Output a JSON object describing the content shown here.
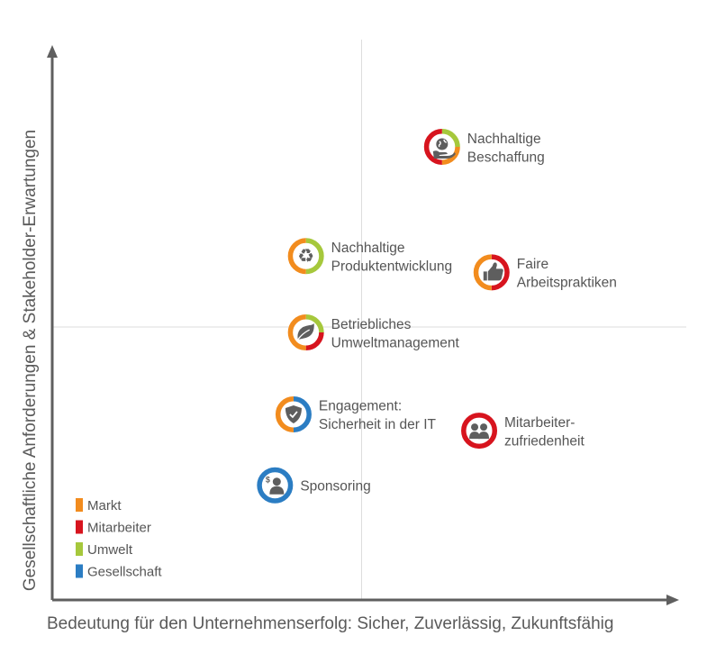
{
  "chart_data": {
    "type": "scatter",
    "title": "",
    "xlabel": "Bedeutung für den Unternehmenserfolg: Sicher, Zuverlässig, Zukunftsfähig",
    "ylabel": "Gesellschaftliche Anforderungen & Stakeholder-Erwartungen",
    "xlim": [
      0,
      100
    ],
    "ylim": [
      0,
      100
    ],
    "dividers": {
      "x": 50,
      "y": 50
    },
    "legend_position": "bottom-left",
    "categories": [
      {
        "name": "Markt",
        "color": "#F28C1E"
      },
      {
        "name": "Mitarbeiter",
        "color": "#D7141E"
      },
      {
        "name": "Umwelt",
        "color": "#A6C83C"
      },
      {
        "name": "Gesellschaft",
        "color": "#2B7DC3"
      }
    ],
    "points": [
      {
        "label": [
          "Nachhaltige",
          "Beschaffung"
        ],
        "x": 63,
        "y": 83,
        "icon": "hand-globe-icon",
        "ring": [
          {
            "category": "Umwelt",
            "share": 0.25
          },
          {
            "category": "Markt",
            "share": 0.25
          },
          {
            "category": "Mitarbeiter",
            "share": 0.5
          }
        ]
      },
      {
        "label": [
          "Nachhaltige",
          "Produktentwicklung"
        ],
        "x": 41,
        "y": 63,
        "icon": "recycle-icon",
        "ring": [
          {
            "category": "Umwelt",
            "share": 0.5
          },
          {
            "category": "Markt",
            "share": 0.5
          }
        ]
      },
      {
        "label": [
          "Faire",
          "Arbeitspraktiken"
        ],
        "x": 71,
        "y": 60,
        "icon": "thumbs-up-icon",
        "ring": [
          {
            "category": "Mitarbeiter",
            "share": 0.5
          },
          {
            "category": "Markt",
            "share": 0.5
          }
        ]
      },
      {
        "label": [
          "Betriebliches",
          "Umweltmanagement"
        ],
        "x": 41,
        "y": 49,
        "icon": "leaf-icon",
        "ring": [
          {
            "category": "Umwelt",
            "share": 0.25
          },
          {
            "category": "Mitarbeiter",
            "share": 0.25
          },
          {
            "category": "Markt",
            "share": 0.5
          }
        ]
      },
      {
        "label": [
          "Engagement:",
          "Sicherheit in der IT"
        ],
        "x": 39,
        "y": 34,
        "icon": "shield-check-icon",
        "ring": [
          {
            "category": "Gesellschaft",
            "share": 0.5
          },
          {
            "category": "Markt",
            "share": 0.5
          }
        ]
      },
      {
        "label": [
          "Mitarbeiter-",
          "zufriedenheit"
        ],
        "x": 69,
        "y": 31,
        "icon": "people-icon",
        "ring": [
          {
            "category": "Mitarbeiter",
            "share": 1.0
          }
        ]
      },
      {
        "label": [
          "Sponsoring"
        ],
        "x": 36,
        "y": 21,
        "icon": "sponsor-person-icon",
        "ring": [
          {
            "category": "Gesellschaft",
            "share": 1.0
          }
        ]
      }
    ]
  }
}
